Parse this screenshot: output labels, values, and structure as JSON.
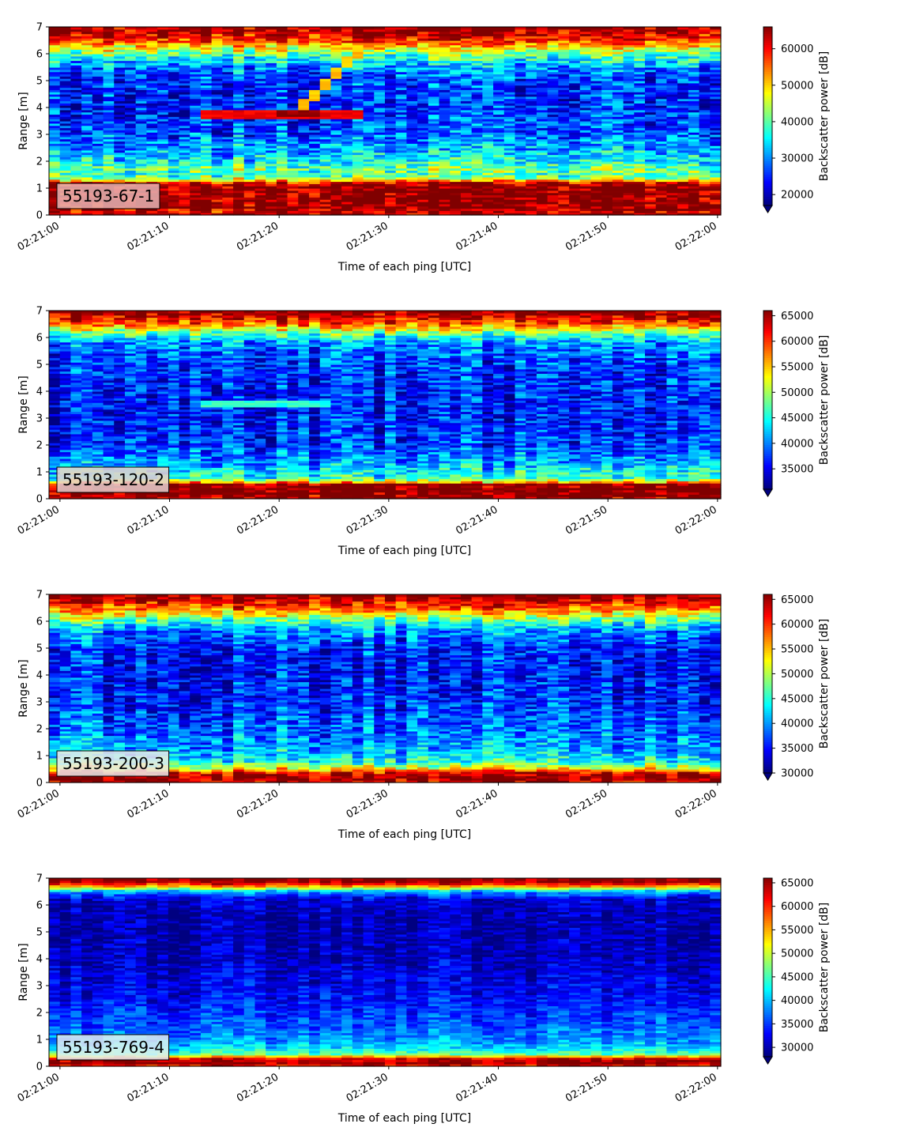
{
  "chart_data": [
    {
      "type": "heatmap",
      "label": "55193-67-1",
      "label_box_color": "#e6b4b4",
      "xlabel": "Time of each ping [UTC]",
      "ylabel": "Range [m]",
      "colorbar_label": "Backscatter power [dB]",
      "x_ticks": [
        "02:21:00",
        "02:21:10",
        "02:21:20",
        "02:21:30",
        "02:21:40",
        "02:21:50",
        "02:22:00"
      ],
      "x_range_seconds": [
        -1,
        60.3
      ],
      "ylim": [
        0,
        7
      ],
      "y_ticks": [
        0,
        1,
        2,
        3,
        4,
        5,
        6,
        7
      ],
      "clim": [
        17000,
        66000
      ],
      "colorbar_ticks": [
        20000,
        30000,
        40000,
        50000,
        60000
      ],
      "colormap": "jet",
      "range_profile": [
        [
          0.0,
          65000
        ],
        [
          0.15,
          62000
        ],
        [
          0.25,
          66000
        ],
        [
          1.1,
          66000
        ],
        [
          1.2,
          62000
        ],
        [
          1.35,
          45000
        ],
        [
          1.5,
          38000
        ],
        [
          1.7,
          42000
        ],
        [
          2.0,
          36000
        ],
        [
          2.4,
          32000
        ],
        [
          3.0,
          28000
        ],
        [
          4.0,
          25000
        ],
        [
          5.0,
          26000
        ],
        [
          5.5,
          30000
        ],
        [
          5.9,
          38000
        ],
        [
          6.2,
          47000
        ],
        [
          6.5,
          58000
        ],
        [
          6.8,
          64000
        ],
        [
          7.0,
          66000
        ]
      ],
      "noise_amplitude": 7000,
      "column_variation": 4000,
      "targets": [
        {
          "t0": 13,
          "t1": 28,
          "r0": 3.75,
          "r1": 3.75,
          "value": 62000,
          "width": 0.2
        },
        {
          "t0": 20,
          "t1": 24,
          "r0": 3.8,
          "r1": 3.8,
          "value": 66000,
          "width": 0.15
        },
        {
          "t0": 22,
          "t1": 27.5,
          "r0": 4.0,
          "r1": 6.2,
          "value": 52000,
          "width": 0.2
        }
      ]
    },
    {
      "type": "heatmap",
      "label": "55193-120-2",
      "label_box_color": "#e8d0d0",
      "xlabel": "Time of each ping [UTC]",
      "ylabel": "Range [m]",
      "colorbar_label": "Backscatter power [dB]",
      "x_ticks": [
        "02:21:00",
        "02:21:10",
        "02:21:20",
        "02:21:30",
        "02:21:40",
        "02:21:50",
        "02:22:00"
      ],
      "x_range_seconds": [
        -1,
        60.3
      ],
      "ylim": [
        0,
        7
      ],
      "y_ticks": [
        0,
        1,
        2,
        3,
        4,
        5,
        6,
        7
      ],
      "clim": [
        31000,
        66000
      ],
      "colorbar_ticks": [
        35000,
        40000,
        45000,
        50000,
        55000,
        60000,
        65000
      ],
      "colormap": "jet",
      "range_profile": [
        [
          0.0,
          64000
        ],
        [
          0.15,
          66000
        ],
        [
          0.55,
          66000
        ],
        [
          0.65,
          52000
        ],
        [
          0.8,
          45000
        ],
        [
          1.0,
          44000
        ],
        [
          1.3,
          41000
        ],
        [
          2.0,
          37000
        ],
        [
          3.0,
          36000
        ],
        [
          4.0,
          36000
        ],
        [
          5.0,
          37000
        ],
        [
          5.8,
          40000
        ],
        [
          6.2,
          48000
        ],
        [
          6.5,
          58000
        ],
        [
          6.8,
          63000
        ],
        [
          7.0,
          66000
        ]
      ],
      "noise_amplitude": 4500,
      "column_variation": 3000,
      "targets": [
        {
          "t0": 13,
          "t1": 25,
          "r0": 3.55,
          "r1": 3.55,
          "value": 47000,
          "width": 0.15
        },
        {
          "t0": 24,
          "t1": 27,
          "r0": 5.0,
          "r1": 5.9,
          "value": 44000,
          "width": 0.15
        }
      ]
    },
    {
      "type": "heatmap",
      "label": "55193-200-3",
      "label_box_color": "#eaeaea",
      "xlabel": "Time of each ping [UTC]",
      "ylabel": "Range [m]",
      "colorbar_label": "Backscatter power [dB]",
      "x_ticks": [
        "02:21:00",
        "02:21:10",
        "02:21:20",
        "02:21:30",
        "02:21:40",
        "02:21:50",
        "02:22:00"
      ],
      "x_range_seconds": [
        -1,
        60.3
      ],
      "ylim": [
        0,
        7
      ],
      "y_ticks": [
        0,
        1,
        2,
        3,
        4,
        5,
        6,
        7
      ],
      "clim": [
        30000,
        66000
      ],
      "colorbar_ticks": [
        30000,
        35000,
        40000,
        45000,
        50000,
        55000,
        60000,
        65000
      ],
      "colormap": "jet",
      "range_profile": [
        [
          0.0,
          62000
        ],
        [
          0.15,
          66000
        ],
        [
          0.35,
          64000
        ],
        [
          0.55,
          52000
        ],
        [
          0.8,
          44000
        ],
        [
          1.2,
          41000
        ],
        [
          2.0,
          38000
        ],
        [
          3.0,
          36000
        ],
        [
          4.0,
          35000
        ],
        [
          5.0,
          35500
        ],
        [
          5.7,
          40000
        ],
        [
          6.1,
          48000
        ],
        [
          6.4,
          56000
        ],
        [
          6.7,
          62000
        ],
        [
          7.0,
          66000
        ]
      ],
      "noise_amplitude": 4500,
      "column_variation": 3000,
      "targets": [
        {
          "t0": 22,
          "t1": 26,
          "r0": 5.0,
          "r1": 5.8,
          "value": 42000,
          "width": 0.15
        }
      ]
    },
    {
      "type": "heatmap",
      "label": "55193-769-4",
      "label_box_color": "#e0eef2",
      "xlabel": "Time of each ping [UTC]",
      "ylabel": "Range [m]",
      "colorbar_label": "Backscatter power [dB]",
      "x_ticks": [
        "02:21:00",
        "02:21:10",
        "02:21:20",
        "02:21:30",
        "02:21:40",
        "02:21:50",
        "02:22:00"
      ],
      "x_range_seconds": [
        -1,
        60.3
      ],
      "ylim": [
        0,
        7
      ],
      "y_ticks": [
        0,
        1,
        2,
        3,
        4,
        5,
        6,
        7
      ],
      "clim": [
        28000,
        66000
      ],
      "colorbar_ticks": [
        30000,
        35000,
        40000,
        45000,
        50000,
        55000,
        60000,
        65000
      ],
      "colormap": "jet",
      "range_profile": [
        [
          0.0,
          60000
        ],
        [
          0.15,
          66000
        ],
        [
          0.3,
          62000
        ],
        [
          0.45,
          46000
        ],
        [
          0.7,
          41000
        ],
        [
          1.0,
          38000
        ],
        [
          1.5,
          36000
        ],
        [
          2.5,
          33000
        ],
        [
          3.5,
          31000
        ],
        [
          4.5,
          30000
        ],
        [
          5.5,
          29500
        ],
        [
          6.2,
          31000
        ],
        [
          6.5,
          38000
        ],
        [
          6.7,
          55000
        ],
        [
          6.85,
          64000
        ],
        [
          7.0,
          66000
        ]
      ],
      "noise_amplitude": 3000,
      "column_variation": 2000,
      "targets": []
    }
  ]
}
